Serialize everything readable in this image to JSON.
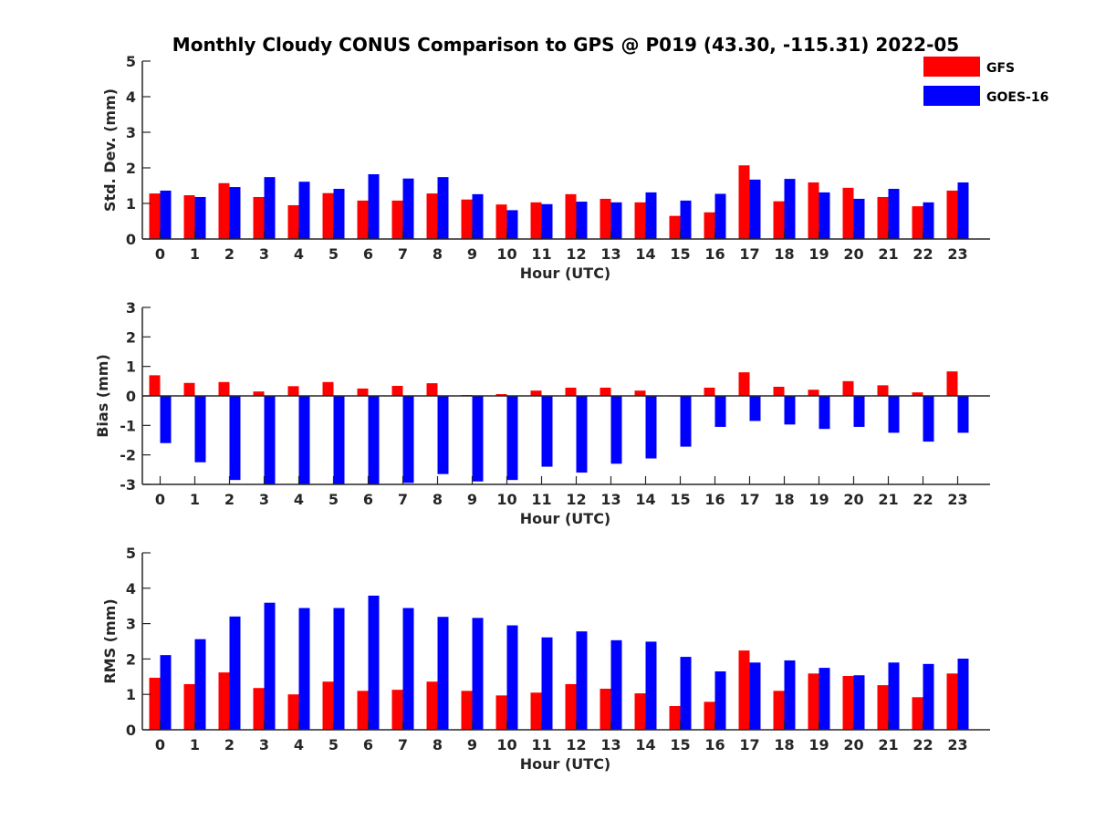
{
  "title": "Monthly Cloudy CONUS Comparison to GPS @ P019 (43.30, -115.31) 2022-05",
  "legend": {
    "placement": "top-right"
  },
  "colors": {
    "GFS": "#ff0000",
    "GOES-16": "#0000ff",
    "axis": "#262626"
  },
  "chart_data": [
    {
      "type": "bar",
      "categories": [
        "0",
        "1",
        "2",
        "3",
        "4",
        "5",
        "6",
        "7",
        "8",
        "9",
        "10",
        "11",
        "12",
        "13",
        "14",
        "15",
        "16",
        "17",
        "18",
        "19",
        "20",
        "21",
        "22",
        "23"
      ],
      "series": [
        {
          "name": "GFS",
          "values": [
            1.28,
            1.23,
            1.57,
            1.18,
            0.95,
            1.29,
            1.08,
            1.08,
            1.28,
            1.11,
            0.97,
            1.03,
            1.26,
            1.13,
            1.03,
            0.65,
            0.75,
            2.07,
            1.06,
            1.59,
            1.44,
            1.18,
            0.92,
            1.36
          ]
        },
        {
          "name": "GOES-16",
          "values": [
            1.36,
            1.18,
            1.46,
            1.74,
            1.61,
            1.41,
            1.82,
            1.7,
            1.74,
            1.26,
            0.81,
            0.98,
            1.05,
            1.03,
            1.31,
            1.08,
            1.27,
            1.67,
            1.69,
            1.31,
            1.13,
            1.41,
            1.03,
            1.59
          ]
        }
      ],
      "xlabel": "Hour (UTC)",
      "ylabel": "Std. Dev. (mm)",
      "ylim": [
        0,
        5
      ],
      "yticks": [
        0,
        1,
        2,
        3,
        4,
        5
      ],
      "grid": false
    },
    {
      "type": "bar",
      "categories": [
        "0",
        "1",
        "2",
        "3",
        "4",
        "5",
        "6",
        "7",
        "8",
        "9",
        "10",
        "11",
        "12",
        "13",
        "14",
        "15",
        "16",
        "17",
        "18",
        "19",
        "20",
        "21",
        "22",
        "23"
      ],
      "series": [
        {
          "name": "GFS",
          "values": [
            0.7,
            0.44,
            0.47,
            0.15,
            0.33,
            0.47,
            0.25,
            0.34,
            0.43,
            0.03,
            0.06,
            0.18,
            0.28,
            0.28,
            0.18,
            -0.02,
            0.28,
            0.8,
            0.31,
            0.21,
            0.5,
            0.36,
            0.12,
            0.83
          ]
        },
        {
          "name": "GOES-16",
          "values": [
            -1.6,
            -2.25,
            -2.85,
            -3.0,
            -3.0,
            -3.0,
            -3.0,
            -2.95,
            -2.65,
            -2.9,
            -2.85,
            -2.4,
            -2.6,
            -2.3,
            -2.12,
            -1.72,
            -1.05,
            -0.85,
            -0.97,
            -1.12,
            -1.05,
            -1.25,
            -1.55,
            -1.25
          ]
        }
      ],
      "xlabel": "Hour (UTC)",
      "ylabel": "Bias (mm)",
      "ylim": [
        -3,
        3
      ],
      "yticks": [
        -3,
        -2,
        -1,
        0,
        1,
        2,
        3
      ],
      "zero_line": true,
      "grid": false
    },
    {
      "type": "bar",
      "categories": [
        "0",
        "1",
        "2",
        "3",
        "4",
        "5",
        "6",
        "7",
        "8",
        "9",
        "10",
        "11",
        "12",
        "13",
        "14",
        "15",
        "16",
        "17",
        "18",
        "19",
        "20",
        "21",
        "22",
        "23"
      ],
      "series": [
        {
          "name": "GFS",
          "values": [
            1.47,
            1.29,
            1.62,
            1.18,
            1.0,
            1.36,
            1.1,
            1.13,
            1.36,
            1.1,
            0.97,
            1.05,
            1.29,
            1.16,
            1.03,
            0.67,
            0.79,
            2.24,
            1.1,
            1.59,
            1.52,
            1.26,
            0.92,
            1.59
          ]
        },
        {
          "name": "GOES-16",
          "values": [
            2.11,
            2.56,
            3.2,
            3.59,
            3.44,
            3.44,
            3.79,
            3.44,
            3.19,
            3.16,
            2.95,
            2.61,
            2.78,
            2.53,
            2.49,
            2.06,
            1.65,
            1.9,
            1.96,
            1.75,
            1.54,
            1.9,
            1.86,
            2.01
          ]
        }
      ],
      "xlabel": "Hour (UTC)",
      "ylabel": "RMS (mm)",
      "ylim": [
        0,
        5
      ],
      "yticks": [
        0,
        1,
        2,
        3,
        4,
        5
      ],
      "grid": false
    }
  ]
}
